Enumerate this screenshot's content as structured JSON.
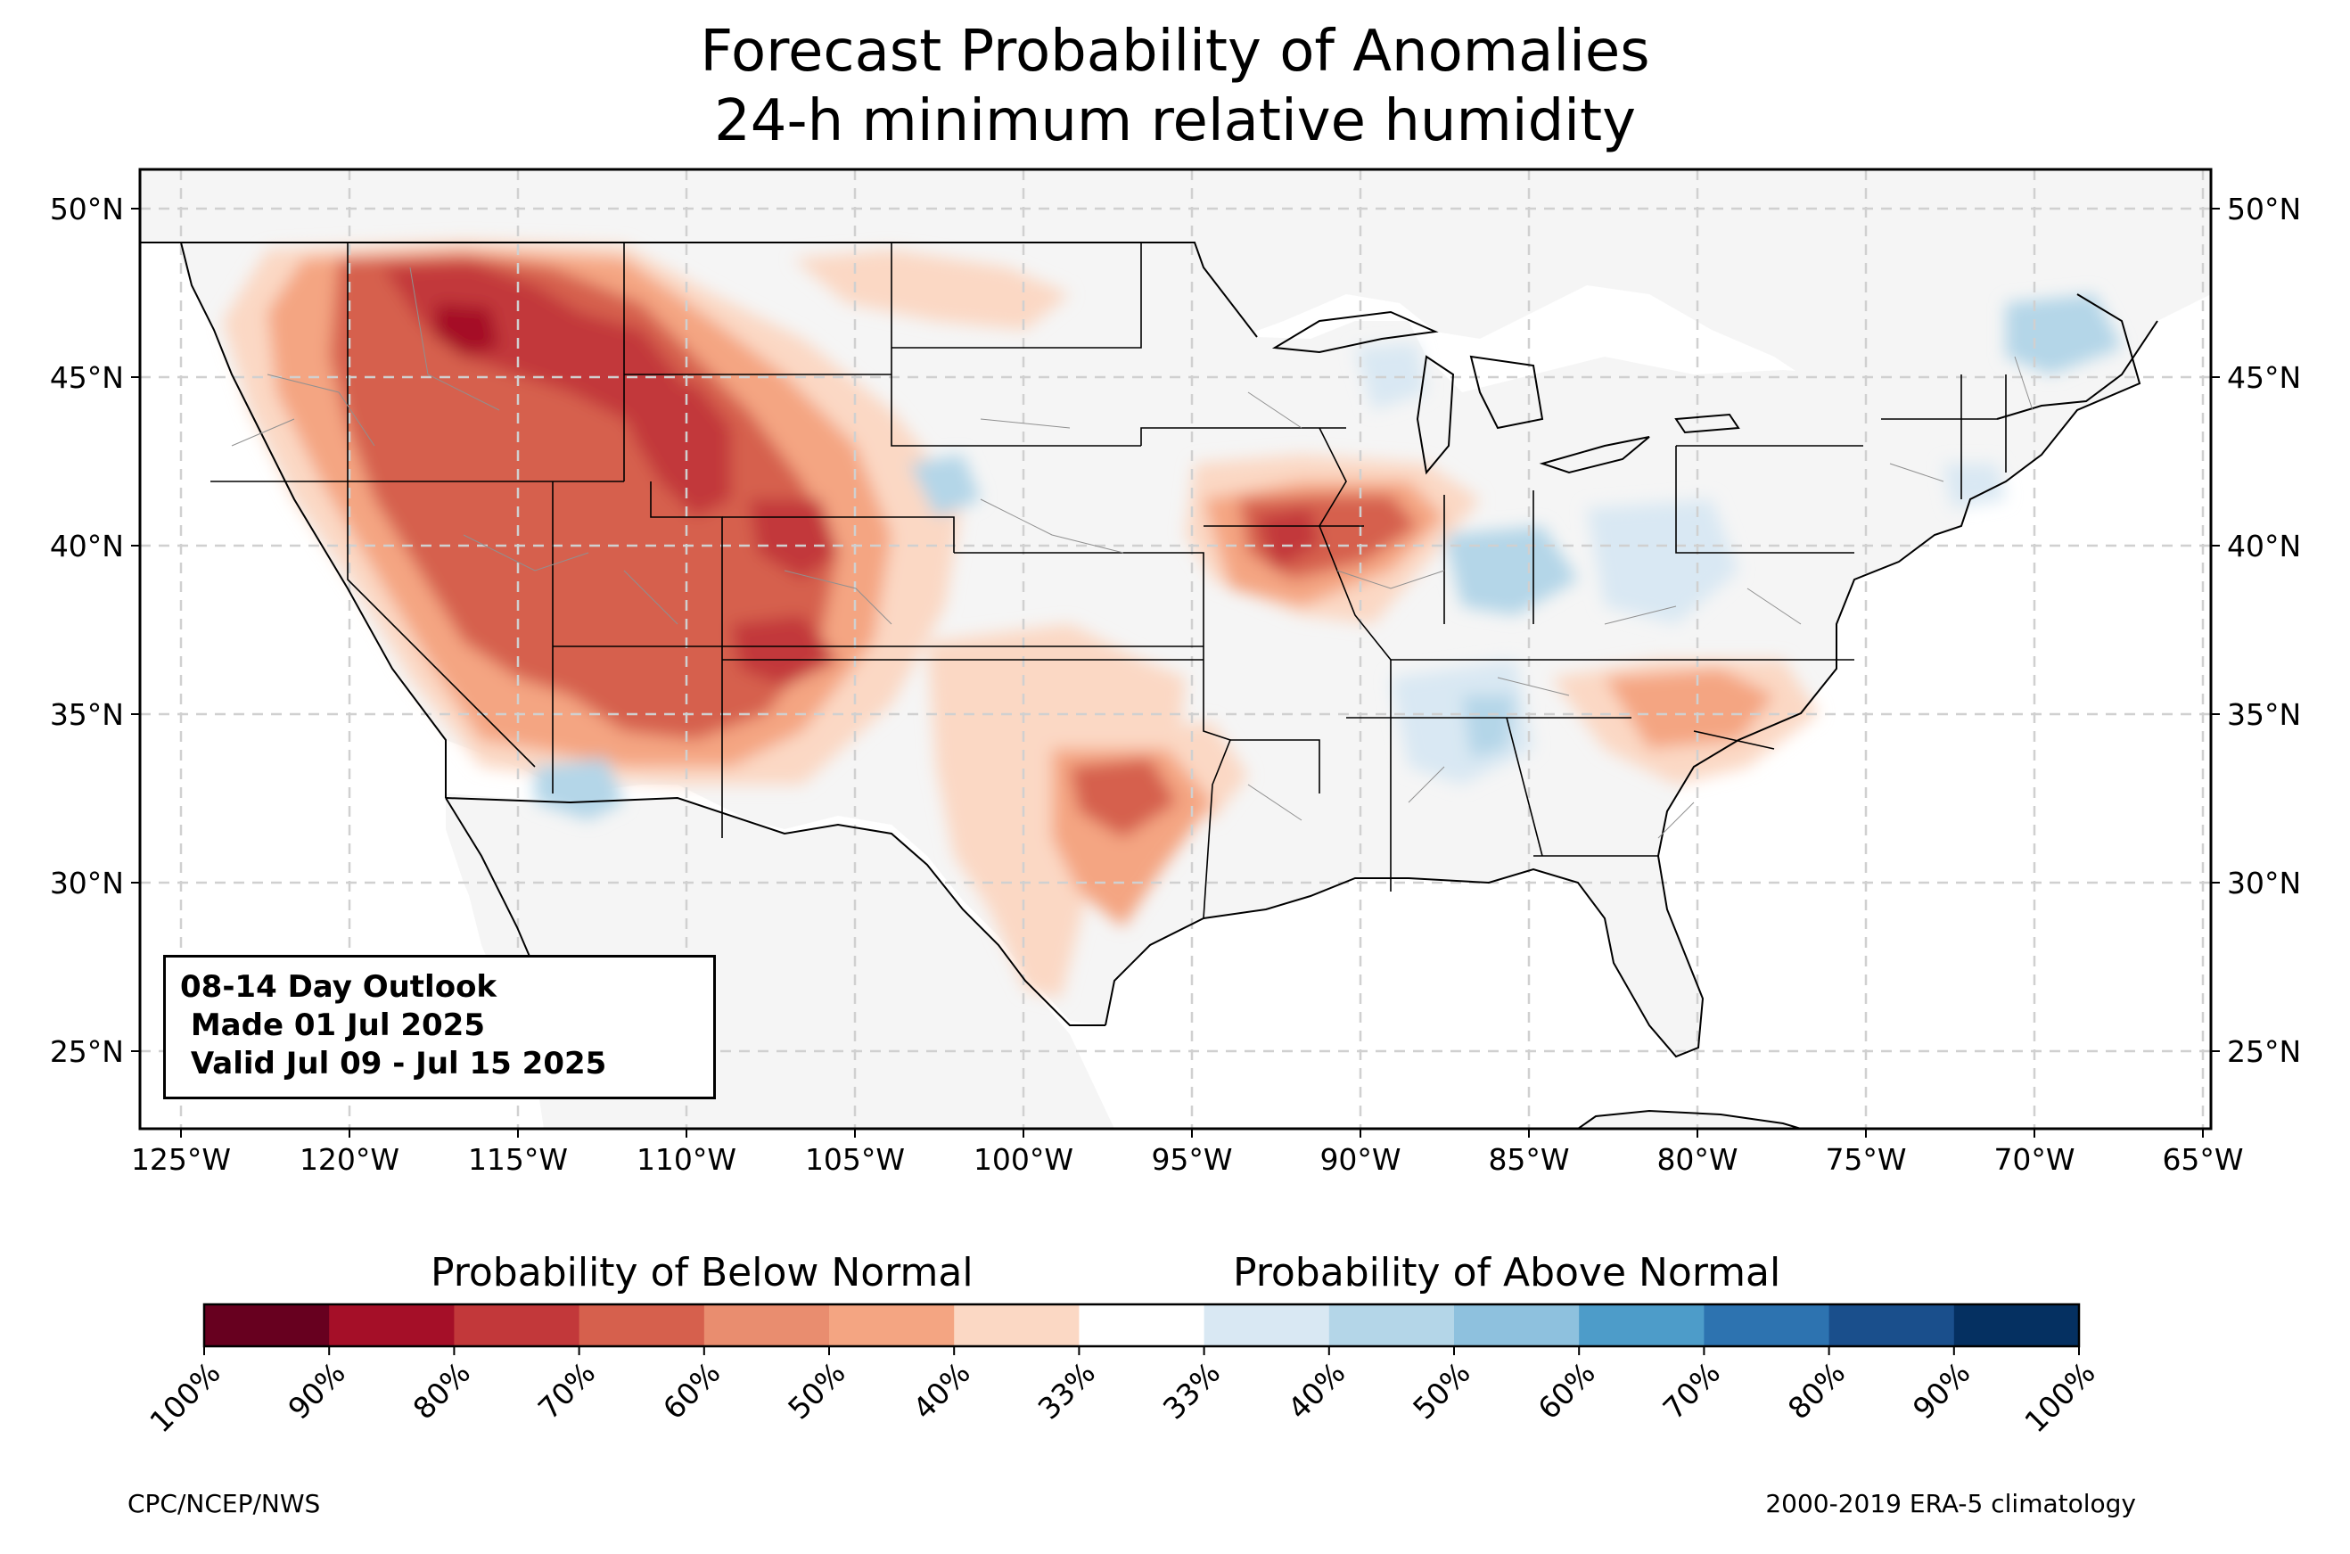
{
  "title": {
    "line1": "Forecast Probability of Anomalies",
    "line2": "24-h minimum relative humidity"
  },
  "info_box": {
    "line1": "08-14 Day Outlook",
    "line2": " Made 01 Jul 2025",
    "line3": " Valid Jul 09 - Jul 15 2025"
  },
  "axes": {
    "lat_ticks": [
      "50°N",
      "45°N",
      "40°N",
      "35°N",
      "30°N",
      "25°N"
    ],
    "lon_ticks": [
      "125°W",
      "120°W",
      "115°W",
      "110°W",
      "105°W",
      "100°W",
      "95°W",
      "90°W",
      "85°W",
      "80°W",
      "75°W",
      "70°W",
      "65°W"
    ]
  },
  "colorbar": {
    "below_label": "Probability of Below Normal",
    "above_label": "Probability of Above Normal",
    "tick_labels": [
      "100%",
      "90%",
      "80%",
      "70%",
      "60%",
      "50%",
      "40%",
      "33%",
      "33%",
      "40%",
      "50%",
      "60%",
      "70%",
      "80%",
      "90%",
      "100%"
    ],
    "colors": [
      "#67001f",
      "#a50f28",
      "#c2383a",
      "#d6604d",
      "#e98d6f",
      "#f4a582",
      "#fbd8c4",
      "#ffffff",
      "#d9e8f3",
      "#b4d6e8",
      "#8ec1de",
      "#4d9cc9",
      "#2d73b0",
      "#1a4f8c",
      "#053061"
    ]
  },
  "credits": {
    "left": "CPC/NCEP/NWS",
    "right": "2000-2019 ERA-5 climatology"
  },
  "colors": {
    "land": "#f5f5f5",
    "grid": "#d0d0d0"
  }
}
